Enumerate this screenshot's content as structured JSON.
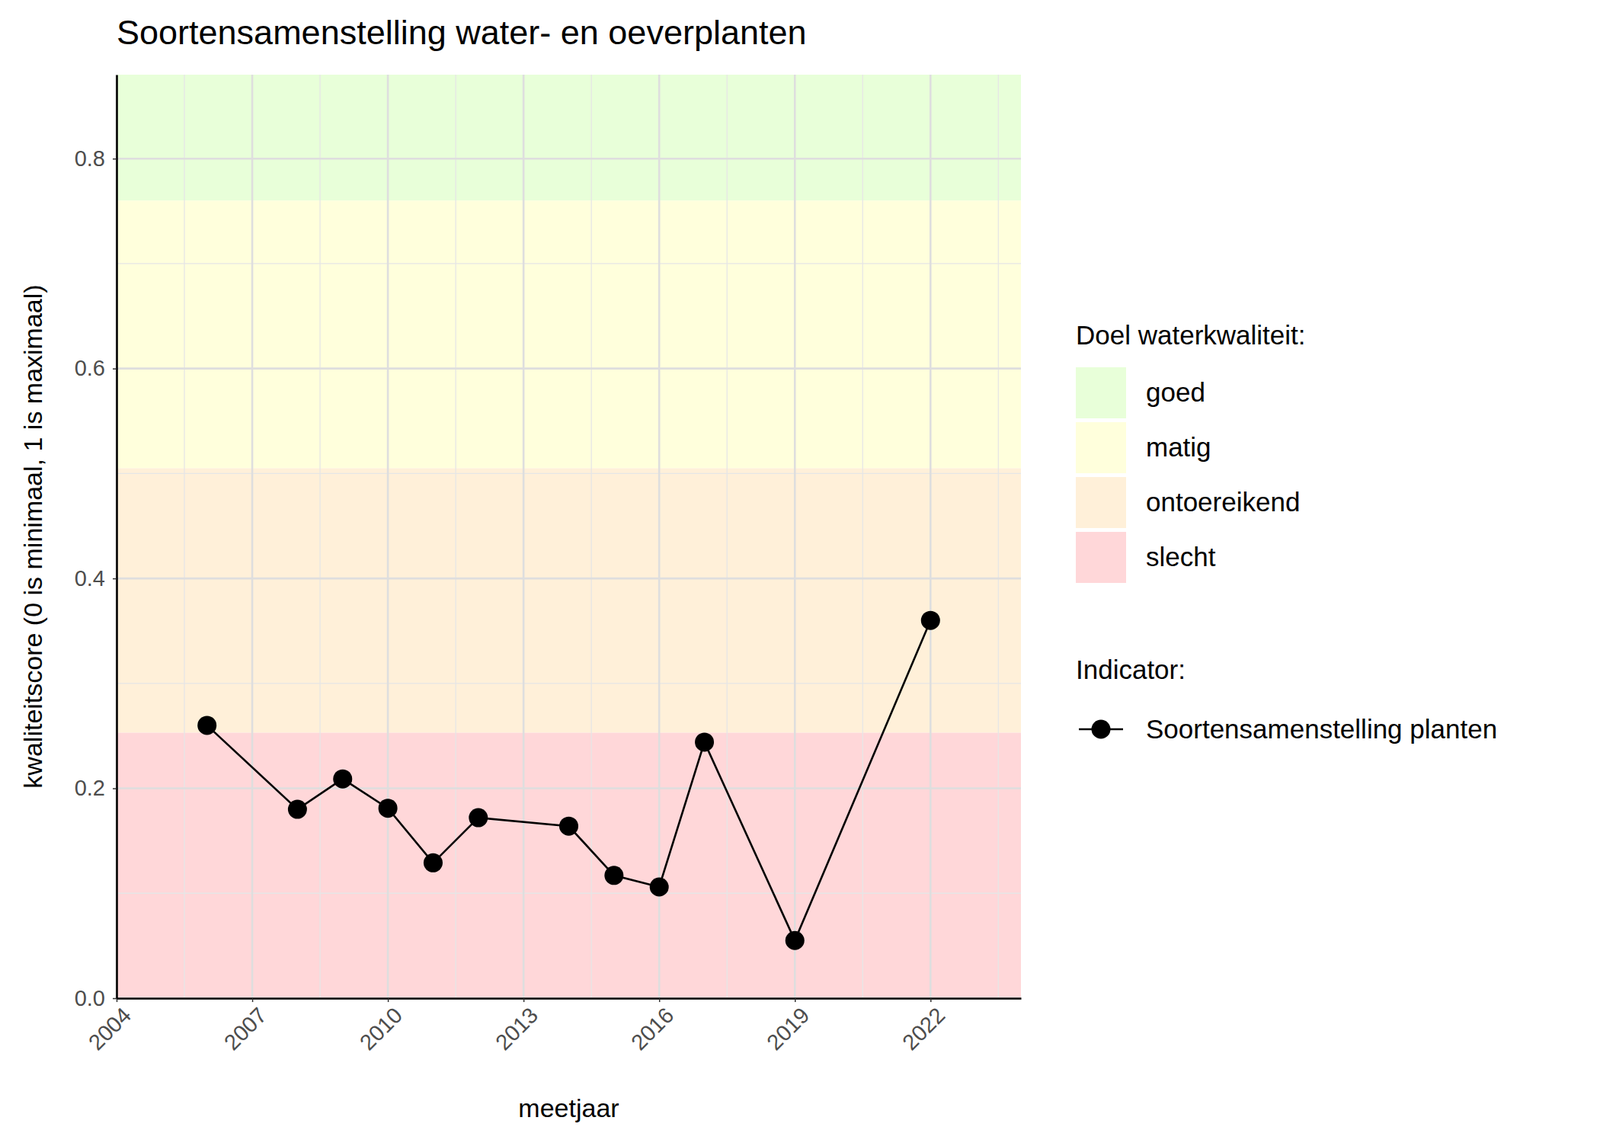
{
  "chart_data": {
    "type": "line",
    "title": "Soortensamenstelling water- en oeverplanten",
    "x_label": "meetjaar",
    "y_label": "kwaliteitscore (0 is minimaal, 1 is maximaal)",
    "x": [
      2006,
      2008,
      2009,
      2010,
      2011,
      2012,
      2014,
      2015,
      2016,
      2017,
      2019,
      2022
    ],
    "series": [
      {
        "name": "Soortensamenstelling planten",
        "color": "#000000",
        "marker": "circle",
        "line_style": "solid",
        "values": [
          0.26,
          0.18,
          0.209,
          0.181,
          0.129,
          0.172,
          0.164,
          0.117,
          0.106,
          0.244,
          0.055,
          0.36
        ]
      }
    ],
    "legend_title": "Indicator:",
    "bands": {
      "title": "Doel waterkwaliteit:",
      "items": [
        {
          "name": "goed",
          "color": "#e8ffd9",
          "from": 0.76,
          "to": 0.88
        },
        {
          "name": "matig",
          "color": "#ffffdc",
          "from": 0.505,
          "to": 0.76
        },
        {
          "name": "ontoereikend",
          "color": "#fff0d9",
          "from": 0.253,
          "to": 0.505
        },
        {
          "name": "slecht",
          "color": "#ffd7d9",
          "from": 0,
          "to": 0.253
        }
      ]
    },
    "xlim": [
      2004,
      2024
    ],
    "ylim": [
      0,
      0.88
    ],
    "xticks": [
      2004,
      2007,
      2010,
      2013,
      2016,
      2019,
      2022
    ],
    "yticks": [
      {
        "value": 0,
        "label": "0.0"
      },
      0.2,
      0.4,
      0.6,
      0.8
    ],
    "grid": true,
    "legend": "right"
  }
}
